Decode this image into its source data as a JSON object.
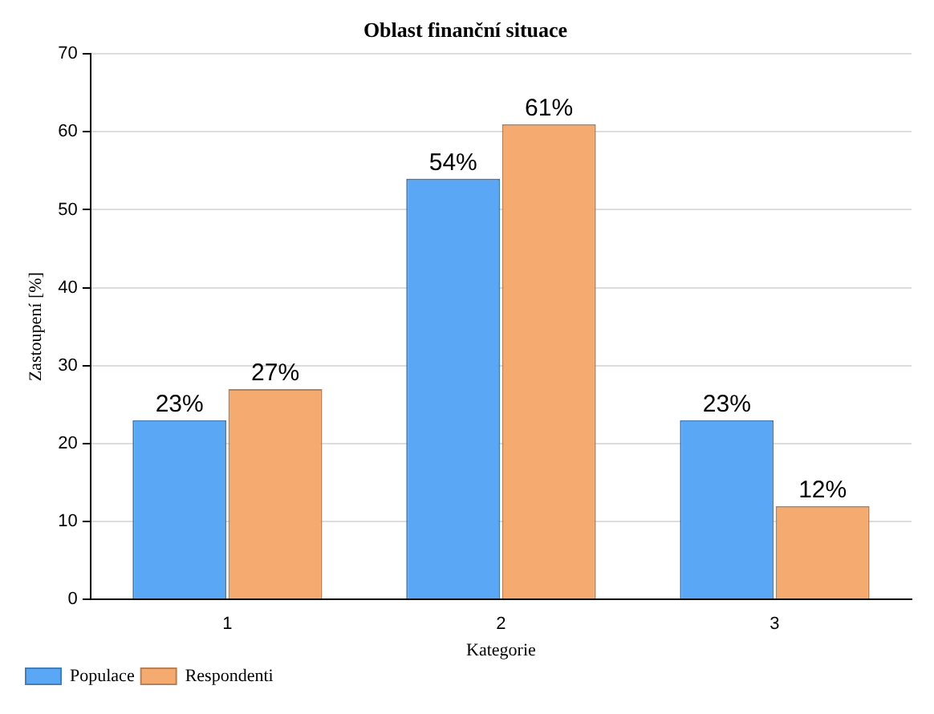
{
  "chart_data": {
    "type": "bar",
    "title": "Oblast finanční situace",
    "xlabel": "Kategorie",
    "ylabel": "Zastoupení [%]",
    "categories": [
      "1",
      "2",
      "3"
    ],
    "series": [
      {
        "name": "Populace",
        "color": "#5aa8f5",
        "values": [
          23,
          54,
          23
        ],
        "value_labels": [
          "23%",
          "54%",
          "23%"
        ]
      },
      {
        "name": "Respondenti",
        "color": "#f5aa70",
        "values": [
          27,
          61,
          12
        ],
        "value_labels": [
          "27%",
          "61%",
          "12%"
        ]
      }
    ],
    "ylim": [
      0,
      70
    ],
    "yticks": [
      0,
      10,
      20,
      30,
      40,
      50,
      60,
      70
    ],
    "grid": "y",
    "legend": "bottom left"
  }
}
